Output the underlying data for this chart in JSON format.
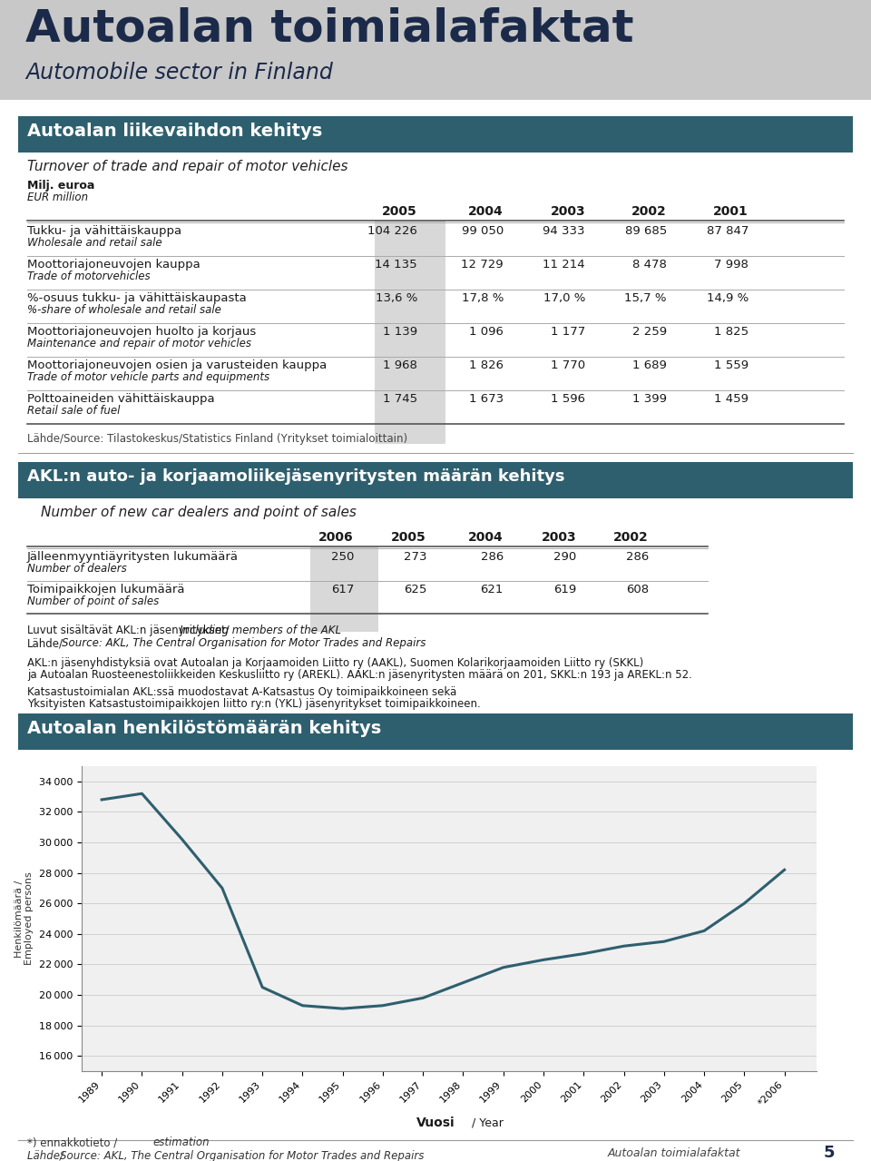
{
  "page_bg": "#ffffff",
  "header_bg": "#c8c8c8",
  "header_title": "Autoalan toimialafaktat",
  "header_subtitle": "Automobile sector in Finland",
  "section_bg": "#2e5f6e",
  "section1_title": "Autoalan liikevaihdon kehitys",
  "section1_subtitle": "Turnover of trade and repair of motor vehicles",
  "table1_unit_fi": "Milj. euroa",
  "table1_unit_en": "EUR million",
  "table1_years": [
    "2005",
    "2004",
    "2003",
    "2002",
    "2001"
  ],
  "table1_rows": [
    {
      "label_fi": "Tukku- ja vähittäiskauppa",
      "label_en": "Wholesale and retail sale",
      "values": [
        "104 226",
        "99 050",
        "94 333",
        "89 685",
        "87 847"
      ]
    },
    {
      "label_fi": "Moottoriajoneuvojen kauppa",
      "label_en": "Trade of motorvehicles",
      "values": [
        "14 135",
        "12 729",
        "11 214",
        "8 478",
        "7 998"
      ]
    },
    {
      "label_fi": "%-osuus tukku- ja vähittäiskaupasta",
      "label_en": "%-share of wholesale and retail sale",
      "values": [
        "13,6 %",
        "17,8 %",
        "17,0 %",
        "15,7 %",
        "14,9 %"
      ]
    },
    {
      "label_fi": "Moottoriajoneuvojen huolto ja korjaus",
      "label_en": "Maintenance and repair of motor vehicles",
      "values": [
        "1 139",
        "1 096",
        "1 177",
        "2 259",
        "1 825"
      ]
    },
    {
      "label_fi": "Moottoriajoneuvojen osien ja varusteiden kauppa",
      "label_en": "Trade of motor vehicle parts and equipments",
      "values": [
        "1 968",
        "1 826",
        "1 770",
        "1 689",
        "1 559"
      ]
    },
    {
      "label_fi": "Polttoaineiden vähittäiskauppa",
      "label_en": "Retail sale of fuel",
      "values": [
        "1 745",
        "1 673",
        "1 596",
        "1 399",
        "1 459"
      ]
    }
  ],
  "table1_source": "Lähde/Source: Tilastokeskus/Statistics Finland (Yritykset toimialoittain)",
  "section2_title": "AKL:n auto- ja korjaamoliikejäsenyritysten määrän kehitys",
  "section2_subtitle": "Number of new car dealers and point of sales",
  "table2_years": [
    "2006",
    "2005",
    "2004",
    "2003",
    "2002"
  ],
  "table2_rows": [
    {
      "label_fi": "Jälleenmyyntiäyritysten lukumäärä",
      "label_en": "Number of dealers",
      "values": [
        "250",
        "273",
        "286",
        "290",
        "286"
      ]
    },
    {
      "label_fi": "Toimipaikkojen lukumäärä",
      "label_en": "Number of point of sales",
      "values": [
        "617",
        "625",
        "621",
        "619",
        "608"
      ]
    }
  ],
  "table2_note1_fi": "Luvut sisältävät AKL:n jäsenyritykset/",
  "table2_note1_en": "Including members of the AKL",
  "table2_source_fi": "Lähde/",
  "table2_source_en": "Source: AKL, The Central Organisation for Motor Trades and Repairs",
  "table2_para1": "AKL:n jäsenyhdistyksiä ovat Autoalan ja Korjaamoiden Liitto ry (AAKL), Suomen Kolarikorjaamoiden Liitto ry (SKKL)",
  "table2_para2": "ja Autoalan Ruosteenestoliikkeiden Keskusliitto ry (AREKL). AAKL:n jäsenyritysten määrä on 201, SKKL:n 193 ja AREKL:n 52.",
  "table2_para3": "Katsastustoimialan AKL:ssä muodostavat A-Katsastus Oy toimipaikkoineen sekä",
  "table2_para4": "Yksityisten Katsastustoimipaikkojen liitto ry:n (YKL) jäsenyritykset toimipaikkoineen.",
  "section3_title": "Autoalan henkilöstömäärän kehitys",
  "chart_ylabel_fi": "Henkilömäärä /",
  "chart_ylabel_en": "Employed persons",
  "chart_xlabel": "Vuosi",
  "chart_xlabel_en": "Year",
  "chart_years": [
    1989,
    1990,
    1991,
    1992,
    1993,
    1994,
    1995,
    1996,
    1997,
    1998,
    1999,
    2000,
    2001,
    2002,
    2003,
    2004,
    2005,
    2006
  ],
  "chart_values": [
    32800,
    33200,
    30200,
    27000,
    20500,
    19300,
    19100,
    19300,
    19800,
    20800,
    21800,
    22300,
    22700,
    23200,
    23500,
    24200,
    26000,
    28200
  ],
  "chart_yticks": [
    16000,
    18000,
    20000,
    22000,
    24000,
    26000,
    28000,
    30000,
    32000,
    34000
  ],
  "chart_line_color": "#2e5f6e",
  "chart_bg": "#f0f0f0",
  "chart_note": "*) ennakkotieto / ",
  "chart_note_it": "estimation",
  "chart_source_fi": "Lähde/ ",
  "chart_source_en": "Source: AKL, The Central Organisation for Motor Trades and Repairs",
  "footer_text": "Autoalan toimialafaktat",
  "footer_page": "5",
  "col_shade": "#d8d8d8",
  "line_color_main": "#888888",
  "line_color_sep": "#aaaaaa"
}
